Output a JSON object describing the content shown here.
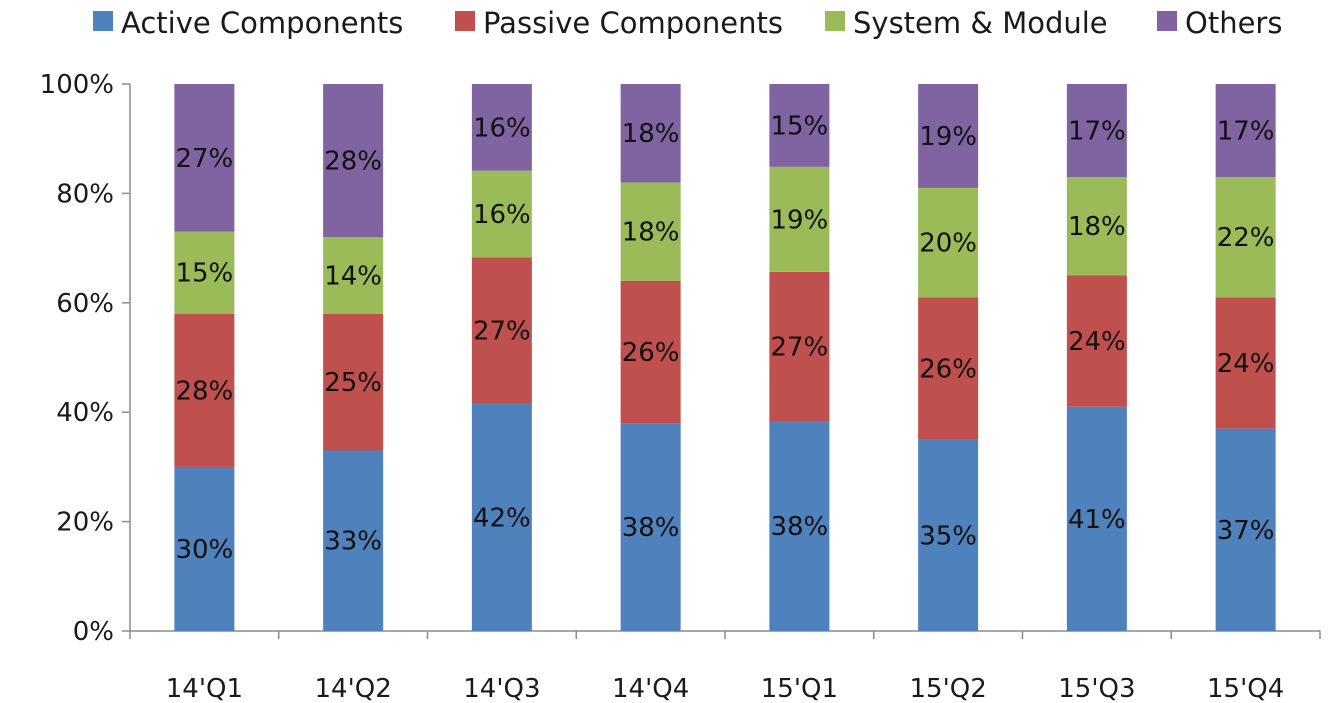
{
  "chart_data": {
    "type": "bar",
    "stacked": true,
    "percent": true,
    "title": "",
    "xlabel": "",
    "ylabel": "",
    "ylim": [
      0,
      100
    ],
    "yticks": [
      "0%",
      "20%",
      "40%",
      "60%",
      "80%",
      "100%"
    ],
    "grid": false,
    "legend": "top",
    "categories": [
      "14'Q1",
      "14'Q2",
      "14'Q3",
      "14'Q4",
      "15'Q1",
      "15'Q2",
      "15'Q3",
      "15'Q4"
    ],
    "series": [
      {
        "name": "Active Components",
        "color": "#4f81bd",
        "values": [
          30,
          33,
          42,
          38,
          38,
          35,
          41,
          37
        ],
        "labels": [
          "30%",
          "33%",
          "42%",
          "38%",
          "38%",
          "35%",
          "41%",
          "37%"
        ]
      },
      {
        "name": "Passive Components",
        "color": "#c0504d",
        "values": [
          28,
          25,
          27,
          26,
          27,
          26,
          24,
          24
        ],
        "labels": [
          "28%",
          "25%",
          "27%",
          "26%",
          "27%",
          "26%",
          "24%",
          "24%"
        ]
      },
      {
        "name": "System & Module",
        "color": "#9bbb59",
        "values": [
          15,
          14,
          16,
          18,
          19,
          20,
          18,
          22
        ],
        "labels": [
          "15%",
          "14%",
          "16%",
          "18%",
          "19%",
          "20%",
          "18%",
          "22%"
        ]
      },
      {
        "name": "Others",
        "color": "#8064a2",
        "values": [
          27,
          28,
          16,
          18,
          15,
          19,
          17,
          17
        ],
        "labels": [
          "27%",
          "28%",
          "16%",
          "18%",
          "15%",
          "19%",
          "17%",
          "17%"
        ]
      }
    ]
  }
}
